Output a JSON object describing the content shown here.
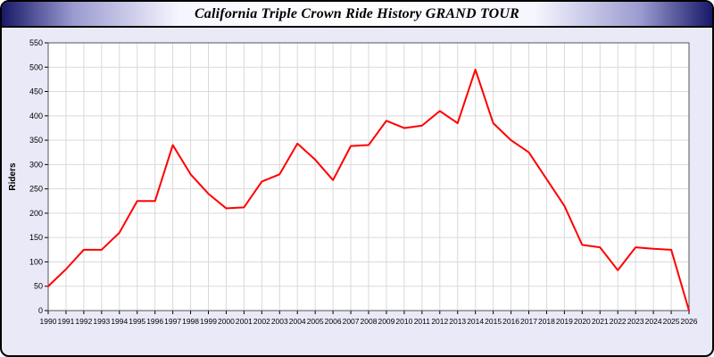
{
  "window": {
    "title": "California Triple Crown Ride History GRAND TOUR"
  },
  "chart_data": {
    "type": "line",
    "title": "California Triple Crown Ride History GRAND TOUR",
    "xlabel": "",
    "ylabel": "Riders",
    "ylim": [
      0,
      550
    ],
    "ytick_step": 50,
    "grid": true,
    "legend_position": "none",
    "plot_background": "#ffffff",
    "grid_color": "#d9d9d9",
    "line_color": "#ff0000",
    "x": [
      1990,
      1991,
      1992,
      1993,
      1994,
      1995,
      1996,
      1997,
      1998,
      1999,
      2000,
      2001,
      2002,
      2003,
      2004,
      2005,
      2006,
      2007,
      2008,
      2009,
      2010,
      2011,
      2012,
      2013,
      2014,
      2015,
      2016,
      2017,
      2018,
      2019,
      2020,
      2021,
      2022,
      2023,
      2024,
      2025,
      2026
    ],
    "series": [
      {
        "name": "Riders",
        "values": [
          50,
          85,
          125,
          125,
          160,
          225,
          225,
          340,
          280,
          240,
          210,
          212,
          265,
          280,
          343,
          310,
          268,
          338,
          340,
          390,
          375,
          380,
          410,
          385,
          495,
          385,
          350,
          325,
          270,
          215,
          135,
          130,
          83,
          130,
          127,
          125,
          0
        ]
      }
    ]
  }
}
